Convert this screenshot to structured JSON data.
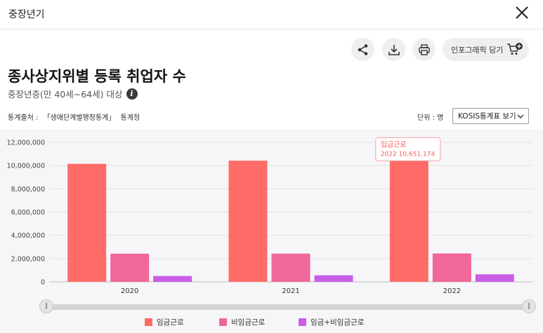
{
  "window": {
    "title": "중장년기"
  },
  "toolbar": {
    "share_icon": "share-icon",
    "download_icon": "download-icon",
    "print_icon": "print-icon",
    "infographic_label": "인포그래픽 담기"
  },
  "header": {
    "title": "종사상지위별 등록 취업자 수",
    "subtitle": "중장년층(만 40세~64세) 대상",
    "info_icon_glyph": "i"
  },
  "source": {
    "label": "통계출처 :",
    "name": "「생애단계별행정통계」",
    "agency": "통계청"
  },
  "unit": {
    "label": "단위 : 명"
  },
  "kosis_select": {
    "label": "KOSIS통계표 보기"
  },
  "colors": {
    "wage": "#ff6b66",
    "nonwage": "#f0679a",
    "combined": "#c95ee6",
    "tooltip_text": "#ff5a55"
  },
  "chart_data": {
    "type": "bar",
    "categories": [
      "2020",
      "2021",
      "2022"
    ],
    "series": [
      {
        "name": "임금근로",
        "values": [
          10150000,
          10420000,
          10651174
        ]
      },
      {
        "name": "비임금근로",
        "values": [
          2420000,
          2430000,
          2440000
        ]
      },
      {
        "name": "임금+비임금근로",
        "values": [
          500000,
          560000,
          650000
        ]
      }
    ],
    "y_ticks": [
      "0",
      "2,000,000",
      "4,000,000",
      "6,000,000",
      "8,000,000",
      "10,000,000",
      "12,000,000"
    ],
    "ylim": [
      0,
      12000000
    ],
    "legend_position": "bottom",
    "tooltip": {
      "series": "임금근로",
      "year": "2022",
      "value": "10,651,174"
    }
  }
}
